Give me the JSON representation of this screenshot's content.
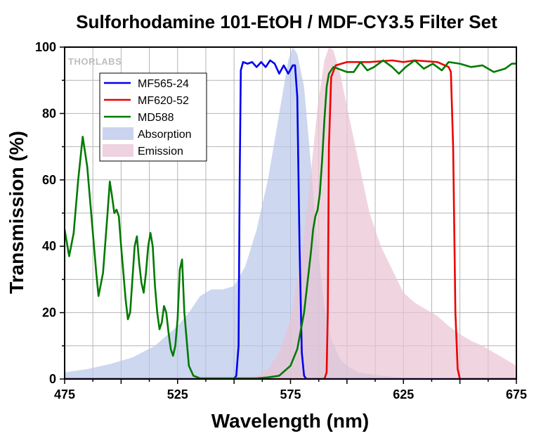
{
  "chart_data": {
    "type": "line",
    "title": "Sulforhodamine 101-EtOH / MDF-CY3.5 Filter Set",
    "xlabel": "Wavelength (nm)",
    "ylabel": "Transmission (%)",
    "xlim": [
      475,
      675
    ],
    "ylim": [
      0,
      100
    ],
    "x_ticks": [
      475,
      500,
      525,
      550,
      575,
      600,
      625,
      650,
      675
    ],
    "x_tick_labels": [
      "475",
      "",
      "525",
      "",
      "575",
      "",
      "625",
      "",
      "675"
    ],
    "y_ticks": [
      0,
      20,
      40,
      60,
      80,
      100
    ],
    "y_tick_labels": [
      "0",
      "20",
      "40",
      "60",
      "80",
      "100"
    ],
    "grid": true,
    "legend_position": "top-left",
    "logo_text": "THORLABS",
    "series": [
      {
        "name": "MF565-24",
        "kind": "line",
        "color": "#0000ee",
        "points": [
          [
            475,
            0
          ],
          [
            550,
            0
          ],
          [
            551,
            1
          ],
          [
            552,
            10
          ],
          [
            552.5,
            60
          ],
          [
            553,
            93
          ],
          [
            554,
            95.5
          ],
          [
            556,
            95
          ],
          [
            558,
            95.5
          ],
          [
            560,
            94
          ],
          [
            562,
            95.5
          ],
          [
            564,
            94
          ],
          [
            566,
            96
          ],
          [
            568,
            95
          ],
          [
            570,
            92
          ],
          [
            572,
            94.5
          ],
          [
            574,
            92
          ],
          [
            576,
            94.5
          ],
          [
            577,
            94.5
          ],
          [
            578,
            85
          ],
          [
            579,
            40
          ],
          [
            580,
            8
          ],
          [
            581,
            1
          ],
          [
            582,
            0
          ],
          [
            675,
            0
          ]
        ]
      },
      {
        "name": "MF620-52",
        "kind": "line",
        "color": "#ee0000",
        "points": [
          [
            475,
            0
          ],
          [
            590,
            0
          ],
          [
            591,
            2
          ],
          [
            591.5,
            20
          ],
          [
            592,
            70
          ],
          [
            593,
            91
          ],
          [
            595,
            94.5
          ],
          [
            600,
            95.5
          ],
          [
            610,
            95.5
          ],
          [
            620,
            96
          ],
          [
            625,
            95.5
          ],
          [
            630,
            96
          ],
          [
            640,
            95.5
          ],
          [
            645,
            94
          ],
          [
            646,
            92.5
          ],
          [
            647,
            70
          ],
          [
            648,
            20
          ],
          [
            649,
            3
          ],
          [
            650,
            0
          ],
          [
            675,
            0
          ]
        ]
      },
      {
        "name": "MD588",
        "kind": "line",
        "color": "#007a00",
        "points": [
          [
            475,
            45
          ],
          [
            477,
            37
          ],
          [
            479,
            44
          ],
          [
            481,
            60
          ],
          [
            483,
            73
          ],
          [
            485,
            64
          ],
          [
            487,
            48
          ],
          [
            489,
            32
          ],
          [
            490,
            25
          ],
          [
            492,
            32
          ],
          [
            494,
            50
          ],
          [
            495,
            59.5
          ],
          [
            496,
            55
          ],
          [
            497,
            50
          ],
          [
            498,
            51
          ],
          [
            499,
            49
          ],
          [
            500,
            40
          ],
          [
            502,
            24
          ],
          [
            503,
            18
          ],
          [
            504,
            20
          ],
          [
            505,
            30
          ],
          [
            506,
            40
          ],
          [
            507,
            43
          ],
          [
            508,
            35
          ],
          [
            509,
            29
          ],
          [
            510,
            26
          ],
          [
            511,
            32
          ],
          [
            512,
            40
          ],
          [
            513,
            44
          ],
          [
            514,
            40
          ],
          [
            515,
            28
          ],
          [
            516,
            20
          ],
          [
            517,
            15
          ],
          [
            518,
            17
          ],
          [
            519,
            22
          ],
          [
            520,
            20
          ],
          [
            521,
            14
          ],
          [
            522,
            9
          ],
          [
            523,
            7
          ],
          [
            524,
            10
          ],
          [
            525,
            18
          ],
          [
            526,
            33
          ],
          [
            527,
            36
          ],
          [
            528,
            20
          ],
          [
            530,
            4
          ],
          [
            532,
            1
          ],
          [
            535,
            0.2
          ],
          [
            560,
            0.2
          ],
          [
            565,
            0.5
          ],
          [
            570,
            1
          ],
          [
            575,
            4
          ],
          [
            578,
            9
          ],
          [
            581,
            20
          ],
          [
            583,
            32
          ],
          [
            584,
            38
          ],
          [
            585,
            45
          ],
          [
            586,
            49
          ],
          [
            587,
            51
          ],
          [
            588,
            56
          ],
          [
            589,
            66
          ],
          [
            590,
            78
          ],
          [
            591,
            88
          ],
          [
            592,
            92
          ],
          [
            594,
            94
          ],
          [
            596,
            93.5
          ],
          [
            600,
            92.5
          ],
          [
            603,
            92.5
          ],
          [
            606,
            95.5
          ],
          [
            609,
            93
          ],
          [
            612,
            94
          ],
          [
            616,
            96
          ],
          [
            620,
            94
          ],
          [
            623,
            92
          ],
          [
            626,
            94
          ],
          [
            630,
            96
          ],
          [
            634,
            93.5
          ],
          [
            638,
            95
          ],
          [
            642,
            93
          ],
          [
            645,
            95.5
          ],
          [
            650,
            95
          ],
          [
            655,
            94
          ],
          [
            660,
            94.5
          ],
          [
            665,
            92.5
          ],
          [
            670,
            93.5
          ],
          [
            673,
            95
          ],
          [
            675,
            95
          ]
        ]
      },
      {
        "name": "Absorption",
        "kind": "area",
        "color": "#b8c6e8",
        "points": [
          [
            475,
            2
          ],
          [
            485,
            3
          ],
          [
            495,
            4.5
          ],
          [
            505,
            6.5
          ],
          [
            515,
            10
          ],
          [
            525,
            16
          ],
          [
            530,
            20
          ],
          [
            535,
            25
          ],
          [
            540,
            27
          ],
          [
            545,
            27
          ],
          [
            550,
            28
          ],
          [
            555,
            34
          ],
          [
            560,
            45
          ],
          [
            565,
            60
          ],
          [
            570,
            80
          ],
          [
            574,
            96
          ],
          [
            576,
            100
          ],
          [
            578,
            98
          ],
          [
            581,
            88
          ],
          [
            584,
            65
          ],
          [
            587,
            40
          ],
          [
            590,
            22
          ],
          [
            593,
            12
          ],
          [
            597,
            6
          ],
          [
            600,
            4
          ],
          [
            605,
            2
          ],
          [
            615,
            1
          ],
          [
            625,
            0.4
          ],
          [
            675,
            0
          ]
        ]
      },
      {
        "name": "Emission",
        "kind": "area",
        "color": "#e9c3d4",
        "points": [
          [
            475,
            0
          ],
          [
            555,
            0
          ],
          [
            560,
            1
          ],
          [
            565,
            3
          ],
          [
            570,
            8
          ],
          [
            575,
            18
          ],
          [
            580,
            38
          ],
          [
            584,
            62
          ],
          [
            587,
            82
          ],
          [
            590,
            96
          ],
          [
            592,
            100
          ],
          [
            594,
            99
          ],
          [
            597,
            92
          ],
          [
            600,
            82
          ],
          [
            605,
            66
          ],
          [
            610,
            50
          ],
          [
            615,
            40
          ],
          [
            620,
            33
          ],
          [
            625,
            26
          ],
          [
            630,
            23
          ],
          [
            635,
            21
          ],
          [
            640,
            19
          ],
          [
            645,
            16
          ],
          [
            650,
            13.5
          ],
          [
            655,
            11.5
          ],
          [
            660,
            10
          ],
          [
            665,
            8
          ],
          [
            670,
            6
          ],
          [
            675,
            4
          ]
        ]
      }
    ]
  }
}
